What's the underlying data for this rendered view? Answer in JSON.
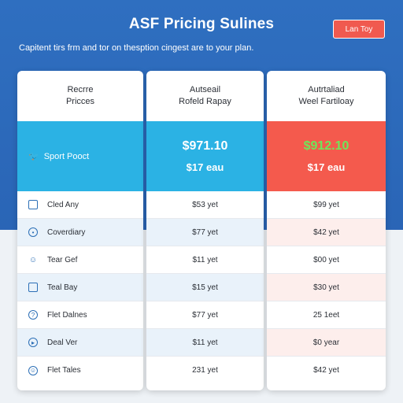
{
  "header": {
    "title": "ASF Pricing Sulines",
    "cta_label": "Lan Toy",
    "subtitle": "Capitent tirs frm and tor on thesption cingest are to your plan."
  },
  "colors": {
    "hero": "#2f6fc0",
    "band_blue": "#2bb2e4",
    "band_red": "#f45a4d",
    "price_green": "#6ee65a"
  },
  "plans": [
    {
      "name": "Recrre\nPricces",
      "band_label": "Sport Pooct",
      "band_icon": "twitter-bird-icon"
    },
    {
      "name": "Autseail\nRofeld Rapay",
      "price": "$971.10",
      "period": "$17 eau"
    },
    {
      "name": "Autrtaliad\nWeel Fartiloay",
      "price": "$912.10",
      "period": "$17 eau"
    }
  ],
  "features": [
    {
      "label": "Cled Any",
      "icon": "image-icon",
      "col2": "$53 yet",
      "col3": "$99 yet"
    },
    {
      "label": "Coverdiary",
      "icon": "clock-icon",
      "col2": "$77 yet",
      "col3": "$42 yet"
    },
    {
      "label": "Tear Gef",
      "icon": "user-icon",
      "col2": "$11 yet",
      "col3": "$00 yet"
    },
    {
      "label": "Teal Bay",
      "icon": "card-icon",
      "col2": "$15 yet",
      "col3": "$30 yet"
    },
    {
      "label": "Flet Dalnes",
      "icon": "help-icon",
      "col2": "$77 yet",
      "col3": "25 1eet"
    },
    {
      "label": "Deal Ver",
      "icon": "play-icon",
      "col2": "$11 yet",
      "col3": "$0 year"
    },
    {
      "label": "Flet Tales",
      "icon": "smile-icon",
      "col2": "231 yet",
      "col3": "$42 yet"
    }
  ]
}
